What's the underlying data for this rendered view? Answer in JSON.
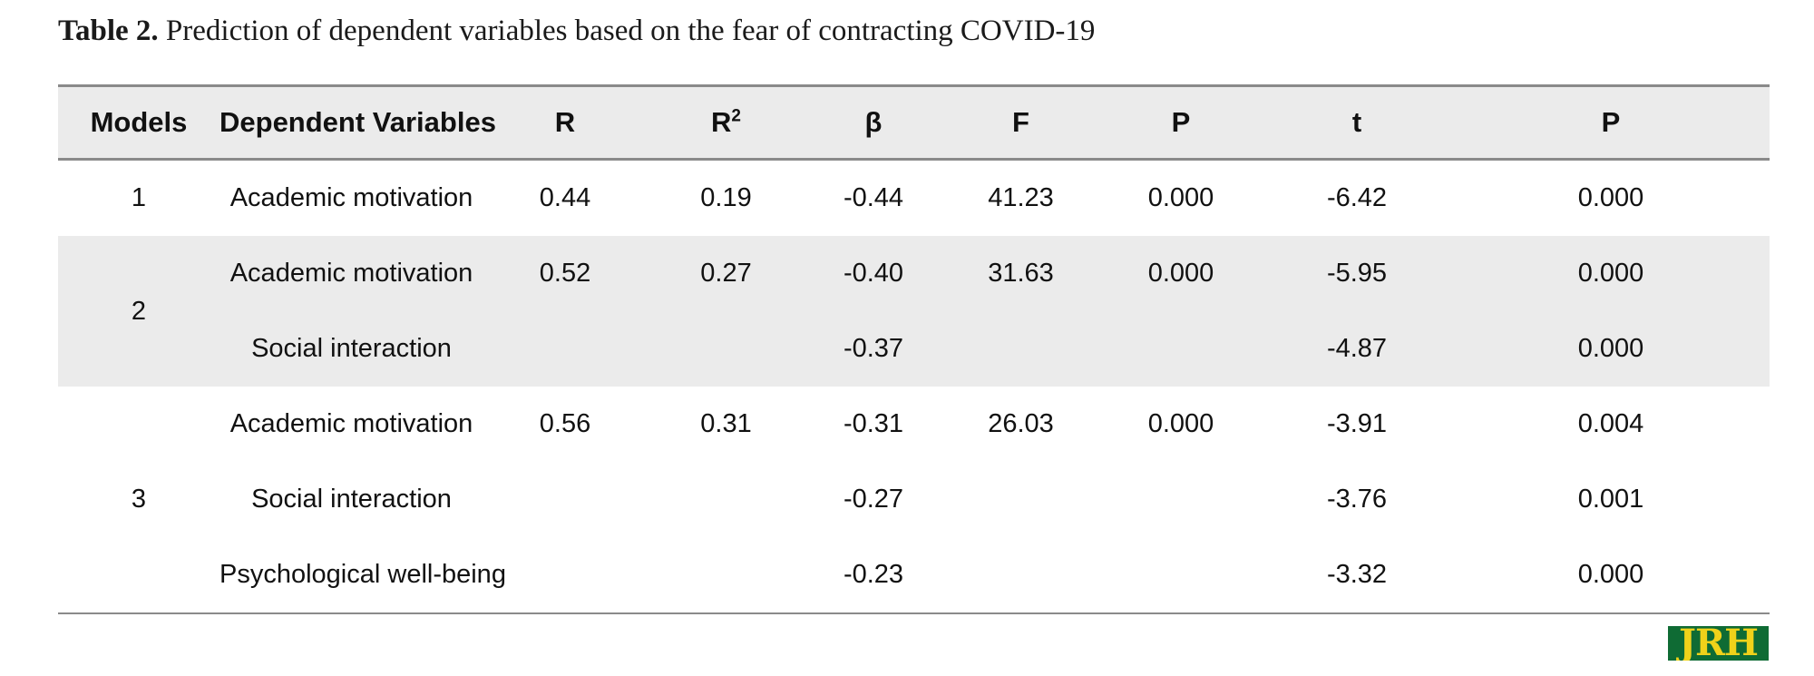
{
  "caption": {
    "label": "Table 2.",
    "text": " Prediction of dependent variables based on the fear of contracting COVID-19"
  },
  "table": {
    "headers": [
      "Models",
      "Dependent Variables",
      "R",
      "R",
      "β",
      "F",
      "P",
      "t",
      "P"
    ],
    "r2_superscript": "2",
    "models": [
      {
        "model": "1",
        "rows": [
          {
            "variable": "Academic motivation",
            "R": "0.44",
            "R2": "0.19",
            "beta": "-0.44",
            "F": "41.23",
            "P_model": "0.000",
            "t": "-6.42",
            "P": "0.000"
          }
        ]
      },
      {
        "model": "2",
        "rows": [
          {
            "variable": "Academic motivation",
            "R": "0.52",
            "R2": "0.27",
            "beta": "-0.40",
            "F": "31.63",
            "P_model": "0.000",
            "t": "-5.95",
            "P": "0.000"
          },
          {
            "variable": "Social interaction",
            "R": "",
            "R2": "",
            "beta": "-0.37",
            "F": "",
            "P_model": "",
            "t": "-4.87",
            "P": "0.000"
          }
        ]
      },
      {
        "model": "3",
        "rows": [
          {
            "variable": "Academic motivation",
            "R": "0.56",
            "R2": "0.31",
            "beta": "-0.31",
            "F": "26.03",
            "P_model": "0.000",
            "t": "-3.91",
            "P": "0.004"
          },
          {
            "variable": "Social interaction",
            "R": "",
            "R2": "",
            "beta": "-0.27",
            "F": "",
            "P_model": "",
            "t": "-3.76",
            "P": "0.001"
          },
          {
            "variable": "Psychological well-being",
            "R": "",
            "R2": "",
            "beta": "-0.23",
            "F": "",
            "P_model": "",
            "t": "-3.32",
            "P": "0.000"
          }
        ]
      }
    ]
  },
  "logo": {
    "text": "JRH",
    "bg_color": "#0f6b34",
    "text_color": "#f0d21a"
  }
}
